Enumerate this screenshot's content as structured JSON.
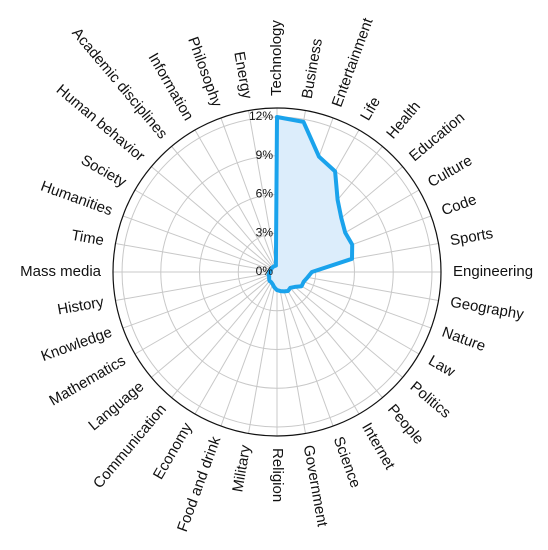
{
  "chart_data": {
    "type": "radar",
    "categories": [
      "Technology",
      "Business",
      "Entertainment",
      "Life",
      "Health",
      "Education",
      "Culture",
      "Code",
      "Sports",
      "Engineering",
      "Geography",
      "Nature",
      "Law",
      "Politics",
      "People",
      "Internet",
      "Science",
      "Government",
      "Religion",
      "Military",
      "Food and drink",
      "Economy",
      "Communication",
      "Language",
      "Mathematics",
      "Knowledge",
      "History",
      "Mass media",
      "Time",
      "Humanities",
      "Society",
      "Human behavior",
      "Academic disciplines",
      "Information",
      "Philosophy",
      "Energy"
    ],
    "values": [
      12,
      11.8,
      9.5,
      9.0,
      7.3,
      6.5,
      6.1,
      6.2,
      5.9,
      2.7,
      2.4,
      2.2,
      2.2,
      1.8,
      1.6,
      1.7,
      1.6,
      1.5,
      1.4,
      1.2,
      1.0,
      0.9,
      0.9,
      0.8,
      0.7,
      0.7,
      0.6,
      0.6,
      0.5,
      0.5,
      0.5,
      0.5,
      0.5,
      0.5,
      0.5,
      0.5
    ],
    "color": "#1aa3ec",
    "fill": "#dcedfb",
    "ylim": [
      0,
      12.7
    ],
    "yticks": [
      {
        "value": 0,
        "label": "0%"
      },
      {
        "value": 3,
        "label": "3%"
      },
      {
        "value": 6,
        "label": "6%"
      },
      {
        "value": 9,
        "label": "9%"
      },
      {
        "value": 12,
        "label": "12%"
      }
    ],
    "grid": true
  }
}
